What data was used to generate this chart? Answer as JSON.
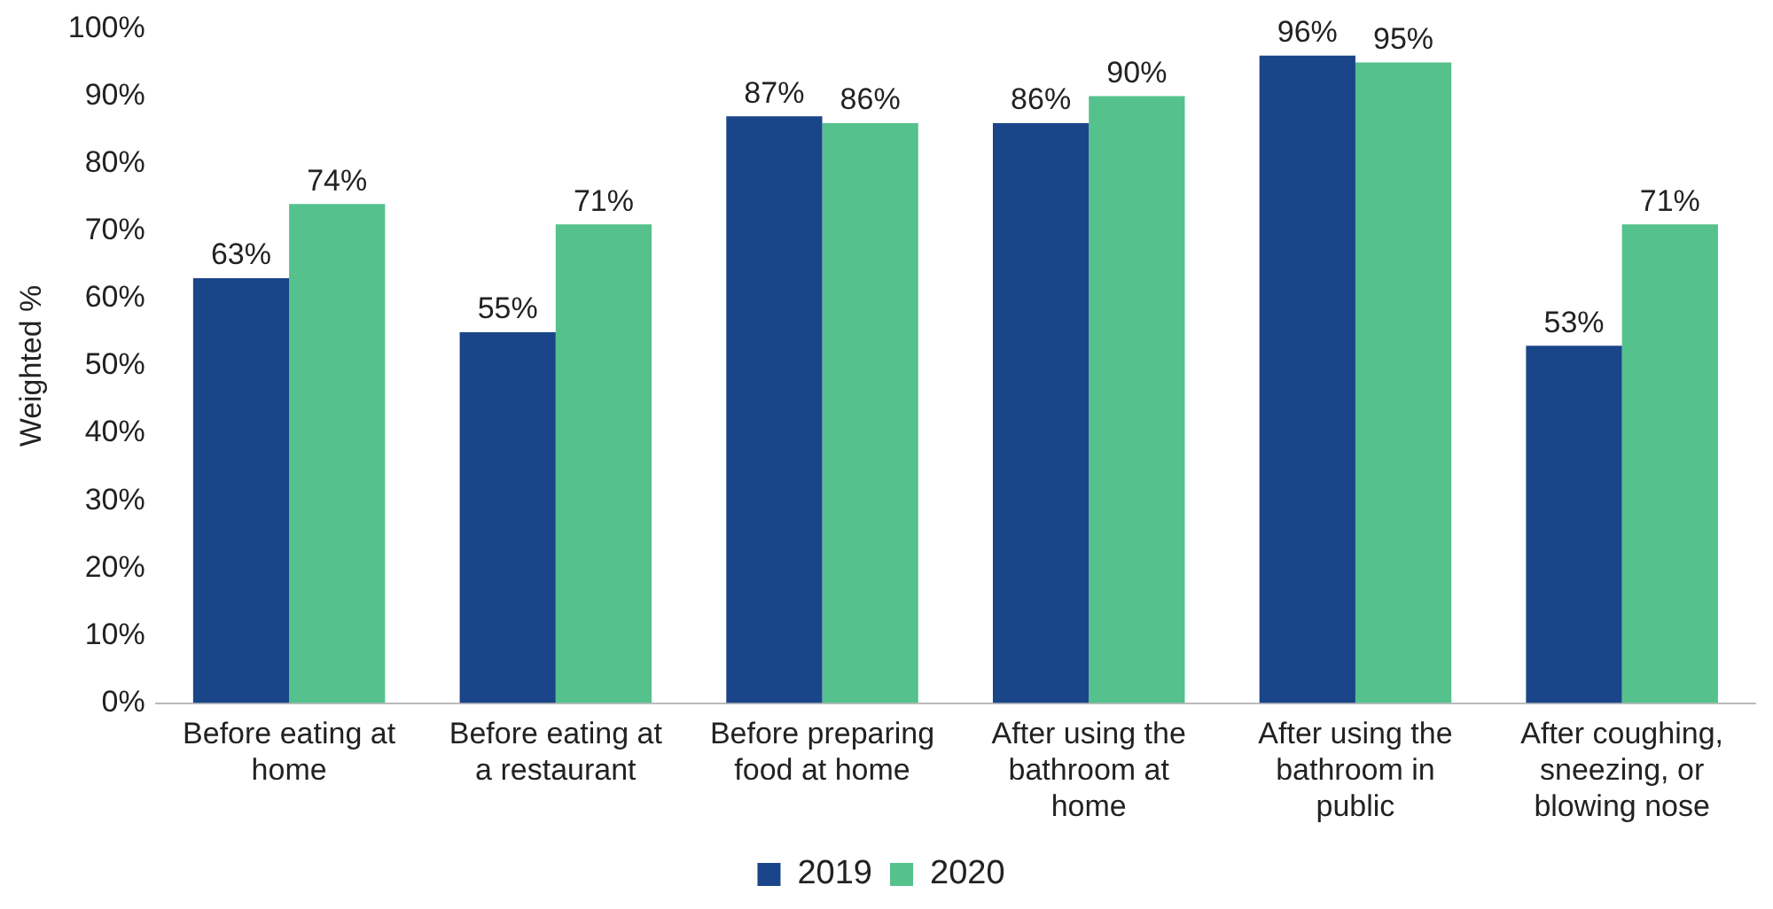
{
  "chart_data": {
    "type": "bar",
    "ylabel": "Weighted %",
    "categories": [
      "Before eating at home",
      "Before eating at a restaurant",
      "Before preparing food at home",
      "After using the bathroom at home",
      "After using the bathroom in public",
      "After coughing, sneezing, or blowing nose"
    ],
    "series": [
      {
        "name": "2019",
        "color": "#1a4589",
        "values": [
          63,
          55,
          87,
          86,
          96,
          53
        ],
        "value_labels": [
          "63%",
          "55%",
          "87%",
          "86%",
          "96%",
          "53%"
        ]
      },
      {
        "name": "2020",
        "color": "#55c18c",
        "values": [
          74,
          71,
          86,
          90,
          95,
          71
        ],
        "value_labels": [
          "74%",
          "71%",
          "86%",
          "90%",
          "95%",
          "71%"
        ]
      }
    ],
    "ylim": [
      0,
      100
    ],
    "yticks": [
      {
        "value": 0,
        "label": "0%"
      },
      {
        "value": 10,
        "label": "10%"
      },
      {
        "value": 20,
        "label": "20%"
      },
      {
        "value": 30,
        "label": "30%"
      },
      {
        "value": 40,
        "label": "40%"
      },
      {
        "value": 50,
        "label": "50%"
      },
      {
        "value": 60,
        "label": "60%"
      },
      {
        "value": 70,
        "label": "70%"
      },
      {
        "value": 80,
        "label": "80%"
      },
      {
        "value": 90,
        "label": "90%"
      },
      {
        "value": 100,
        "label": "100%"
      }
    ],
    "grid": false,
    "legend": "bottom"
  }
}
